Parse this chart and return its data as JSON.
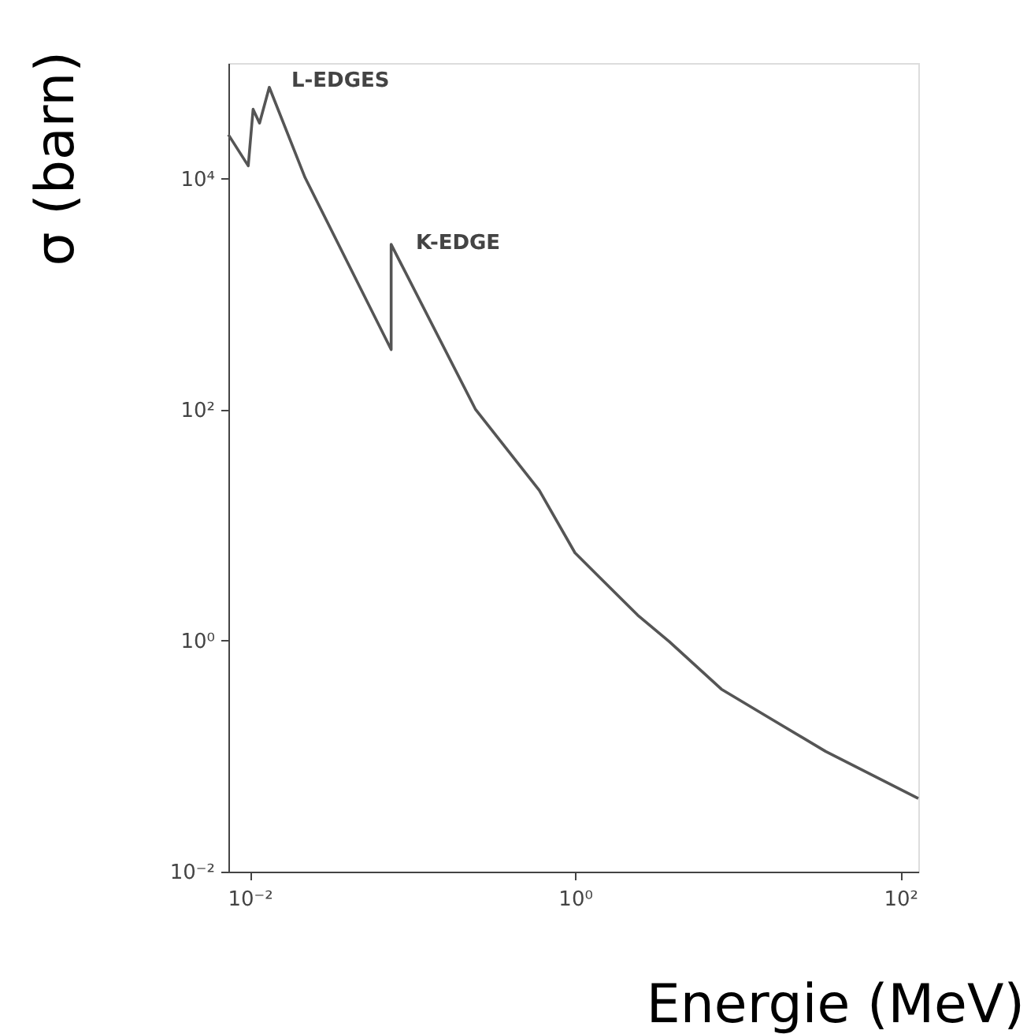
{
  "chart_data": {
    "type": "line",
    "xlabel": "Energie (MeV)",
    "ylabel": "σ (barn)",
    "log": "xy",
    "grid": false,
    "marker": "none",
    "line_style": "solid",
    "x": [
      0.0074,
      0.0098,
      0.0105,
      0.0115,
      0.0132,
      0.0219,
      0.0741,
      0.0741,
      0.245,
      0.603,
      1.0,
      2.43,
      3.8,
      7.94,
      16.6,
      34.7,
      129
    ],
    "series": [
      {
        "color": "#555555",
        "values": [
          24000,
          12900,
          39800,
          30200,
          61700,
          10200,
          331,
          2690,
          100,
          20,
          5.75,
          1.66,
          0.98,
          0.38,
          0.204,
          0.11,
          0.043
        ]
      }
    ],
    "xlim": [
      0.0074,
      129
    ],
    "ylim": [
      0.01,
      100000
    ],
    "xticks": [
      {
        "value": 0.01,
        "label": "10⁻²"
      },
      {
        "value": 1,
        "label": "10⁰"
      },
      {
        "value": 100,
        "label": "10²"
      }
    ],
    "yticks": [
      {
        "value": 0.01,
        "label": "10⁻²"
      },
      {
        "value": 1,
        "label": "10⁰"
      },
      {
        "value": 100,
        "label": "10²"
      },
      {
        "value": 10000,
        "label": "10⁴"
      }
    ],
    "annotations": [
      "L-EDGES",
      "K-EDGE"
    ]
  }
}
